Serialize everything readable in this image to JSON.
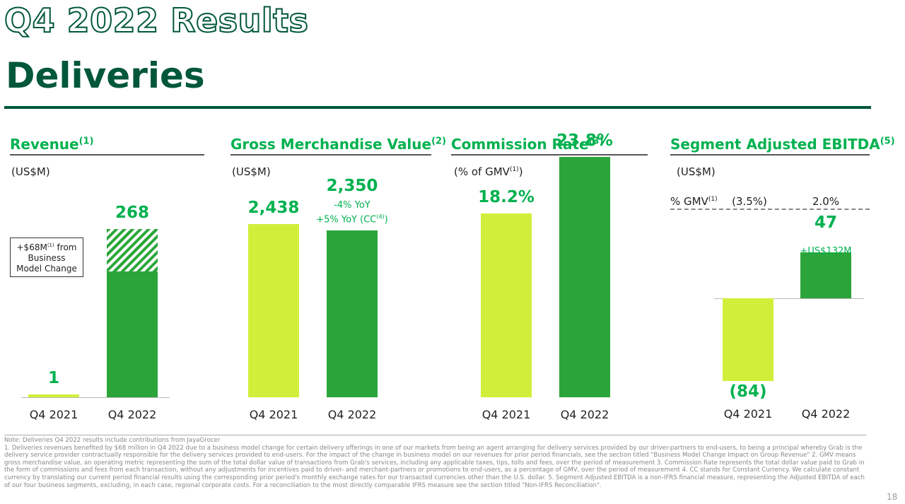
{
  "header": {
    "title_outline": "Q4 2022 Results",
    "title_main": "Deliveries"
  },
  "colors": {
    "dark_green": "#00573a",
    "grab_green": "#00b14f",
    "lime": "#d1ef3a",
    "bar_green": "#2ba53a"
  },
  "revenue": {
    "title": "Revenue",
    "title_sup": "(1)",
    "unit": "(US$M)",
    "callout": {
      "line1_prefix": "+$68M",
      "line1_sup": "(1)",
      "line1_suffix": " from",
      "line2": "Business",
      "line3": "Model Change"
    }
  },
  "gmv": {
    "title": "Gross Merchandise Value",
    "title_sup": "(2)",
    "unit": "(US$M)",
    "yoy_line1": "-4% YoY",
    "yoy_line2_prefix": "+5% YoY (CC",
    "yoy_line2_sup": "(4)",
    "yoy_line2_suffix": ")"
  },
  "commission": {
    "title": "Commission Rate",
    "title_sup": "(3)",
    "unit_prefix": "(% of GMV",
    "unit_sup": "(1)",
    "unit_suffix": ")"
  },
  "ebitda": {
    "title": "Segment Adjusted EBITDA",
    "title_sup": "(5)",
    "unit": "(US$M)",
    "gmv_row_label": "% GMV",
    "gmv_row_sup": "(1)",
    "gmv_row_values": [
      "(3.5%)",
      "2.0%"
    ],
    "change_label": "+US$132M"
  },
  "chart_data": [
    {
      "type": "bar",
      "title": "Revenue(1)",
      "ylabel": "(US$M)",
      "categories": [
        "Q4 2021",
        "Q4 2022"
      ],
      "values": [
        1,
        268
      ],
      "value_labels": [
        "1",
        "268"
      ],
      "segments_Q4_2022": {
        "underlying": 200,
        "business_model_change": 68
      },
      "ylim": [
        0,
        300
      ]
    },
    {
      "type": "bar",
      "title": "Gross Merchandise Value(2)",
      "ylabel": "(US$M)",
      "categories": [
        "Q4 2021",
        "Q4 2022"
      ],
      "values": [
        2438,
        2350
      ],
      "value_labels": [
        "2,438",
        "2,350"
      ],
      "ylim": [
        0,
        3400
      ]
    },
    {
      "type": "bar",
      "title": "Commission Rate(3)",
      "ylabel": "(% of GMV(1))",
      "categories": [
        "Q4 2021",
        "Q4 2022"
      ],
      "values": [
        18.2,
        23.8
      ],
      "value_labels": [
        "18.2%",
        "23.8%"
      ],
      "ylim": [
        0,
        26.5
      ]
    },
    {
      "type": "bar",
      "title": "Segment Adjusted EBITDA(5)",
      "ylabel": "(US$M)",
      "categories": [
        "Q4 2021",
        "Q4 2022"
      ],
      "values": [
        -84,
        47
      ],
      "value_labels": [
        "(84)",
        "47"
      ],
      "ylim": [
        -84,
        47
      ]
    }
  ],
  "notes": {
    "lines": [
      "Note: Deliveries Q4 2022 results include contributions from JayaGrocer",
      "1. Deliveries revenues benefited by $68 million in Q4 2022 due to a business model change for certain delivery offerings in one of our markets from being an agent arranging for delivery services provided by our driver-partners to end-users, to being a principal whereby Grab is the delivery service provider contractually responsible for the delivery services provided to end-users. For the impact of the change in business model on our revenues for prior period financials, see the section titled \"Business Model Change Impact on Group Revenue\" 2. GMV means gross merchandise value, an operating metric representing the sum of the total dollar value of transactions from Grab's services, including any applicable taxes, tips, tolls and fees, over the period of measurement 3. Commission Rate represents the total dollar value paid to Grab in the form of commissions and fees from each transaction, without any adjustments for incentives paid to driver- and merchant-partners or promotions to end-users, as a percentage of GMV, over the period of measurement 4. CC stands for Constant Currency. We calculate constant currency by translating our current period financial results using the corresponding prior period's monthly exchange rates for our transacted currencies other than the U.S. dollar. 5. Segment Adjusted EBITDA is a non-IFRS financial measure, representing the Adjusted EBITDA of each of our four business segments, excluding, in each case, regional corporate costs. For a reconciliation to the most directly comparable IFRS measure see the section titled \"Non-IFRS Reconciliation\"."
    ],
    "page_number": "18"
  }
}
